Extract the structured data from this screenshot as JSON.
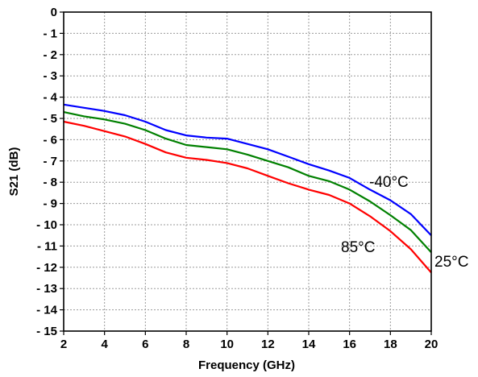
{
  "chart_data": {
    "type": "line",
    "title": "",
    "xlabel": "Frequency (GHz)",
    "ylabel": "S21 (dB)",
    "xlim": [
      2,
      20
    ],
    "ylim": [
      -15,
      0
    ],
    "grid": true,
    "x_ticks": [
      2,
      4,
      6,
      8,
      10,
      12,
      14,
      16,
      18,
      20
    ],
    "y_ticks": [
      0,
      -1,
      -2,
      -3,
      -4,
      -5,
      -6,
      -7,
      -8,
      -9,
      -10,
      -11,
      -12,
      -13,
      -14,
      -15
    ],
    "y_tick_labels": [
      "0",
      "- 1",
      "- 2",
      "- 3",
      "- 4",
      "- 5",
      "- 6",
      "- 7",
      "- 8",
      "- 9",
      "- 10",
      "- 11",
      "- 12",
      "- 13",
      "- 14",
      "- 15"
    ],
    "x": [
      2,
      3,
      4,
      5,
      6,
      7,
      8,
      9,
      10,
      11,
      12,
      13,
      14,
      15,
      16,
      17,
      18,
      19,
      20
    ],
    "series": [
      {
        "name": "-40°C",
        "color": "#0000ff",
        "values": [
          -4.35,
          -4.5,
          -4.65,
          -4.85,
          -5.15,
          -5.55,
          -5.8,
          -5.9,
          -5.95,
          -6.2,
          -6.45,
          -6.8,
          -7.15,
          -7.45,
          -7.8,
          -8.35,
          -8.85,
          -9.5,
          -10.5
        ]
      },
      {
        "name": "25°C",
        "color": "#008000",
        "values": [
          -4.7,
          -4.9,
          -5.05,
          -5.25,
          -5.55,
          -5.95,
          -6.25,
          -6.35,
          -6.45,
          -6.7,
          -7.0,
          -7.3,
          -7.7,
          -7.95,
          -8.35,
          -8.9,
          -9.55,
          -10.25,
          -11.3
        ]
      },
      {
        "name": "85°C",
        "color": "#ff0000",
        "values": [
          -5.15,
          -5.35,
          -5.6,
          -5.85,
          -6.2,
          -6.6,
          -6.85,
          -6.95,
          -7.1,
          -7.35,
          -7.7,
          -8.05,
          -8.35,
          -8.6,
          -9.0,
          -9.6,
          -10.3,
          -11.15,
          -12.25
        ]
      }
    ]
  }
}
